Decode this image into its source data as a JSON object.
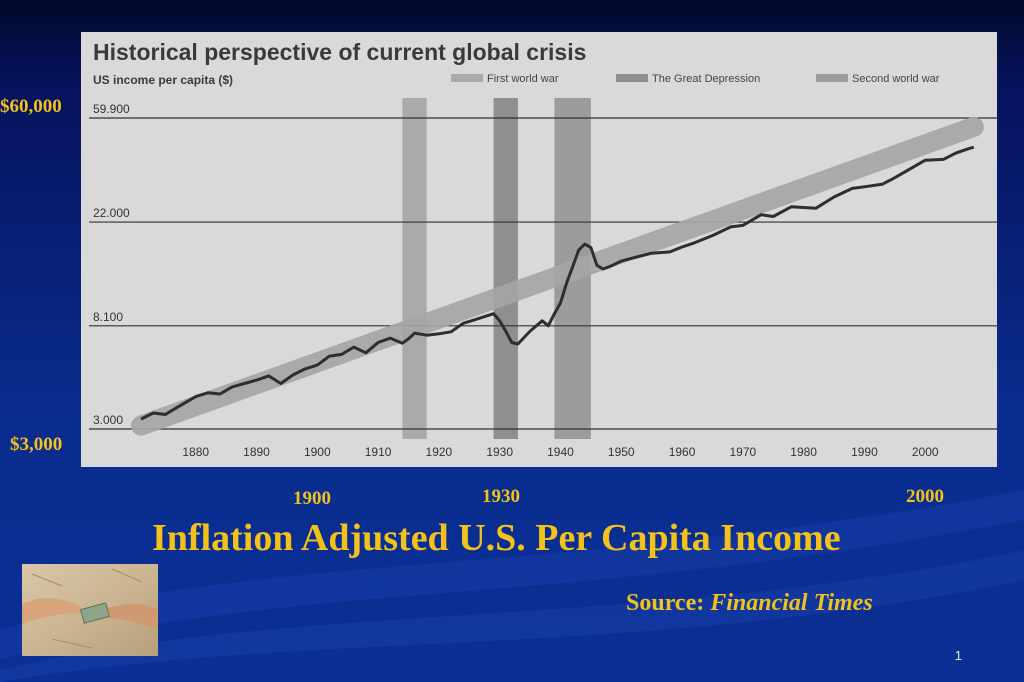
{
  "slide": {
    "title": "Inflation Adjusted U.S. Per Capita Income",
    "source_label": "Source:",
    "source_name": "Financial Times",
    "slide_number": "1",
    "y_label_top": "$60,000",
    "y_label_bottom": "$3,000",
    "year_labels": [
      "1900",
      "1930",
      "2000"
    ],
    "image_description": "hands passing money"
  },
  "chart_data": {
    "type": "line",
    "title": "Historical perspective of current global crisis",
    "ylabel": "US income per capita ($)",
    "scale": "log",
    "ylim": [
      3000,
      59900
    ],
    "yticks": [
      59900,
      22000,
      8100,
      3000
    ],
    "ytick_labels": [
      "59.900",
      "22.000",
      "8.100",
      "3.000"
    ],
    "xlim": [
      1871,
      2010
    ],
    "xticks": [
      1880,
      1890,
      1900,
      1910,
      1920,
      1930,
      1940,
      1950,
      1960,
      1970,
      1980,
      1990,
      2000
    ],
    "legend_position": "top",
    "shaded_periods": [
      {
        "name": "First world war",
        "start": 1914,
        "end": 1918
      },
      {
        "name": "The Great Depression",
        "start": 1929,
        "end": 1933
      },
      {
        "name": "Second world war",
        "start": 1939,
        "end": 1945
      }
    ],
    "trend": {
      "x": [
        1871,
        2008
      ],
      "y": [
        3100,
        55000
      ]
    },
    "series": [
      {
        "x": [
          1871,
          1873,
          1875,
          1877,
          1880,
          1882,
          1884,
          1886,
          1888,
          1890,
          1892,
          1894,
          1896,
          1898,
          1900,
          1902,
          1904,
          1906,
          1908,
          1910,
          1912,
          1914,
          1915,
          1916,
          1918,
          1920,
          1922,
          1924,
          1926,
          1929,
          1930,
          1931,
          1932,
          1933,
          1935,
          1937,
          1938,
          1939,
          1940,
          1941,
          1942,
          1943,
          1944,
          1945,
          1946,
          1947,
          1948,
          1950,
          1952,
          1955,
          1958,
          1960,
          1962,
          1965,
          1968,
          1970,
          1973,
          1975,
          1978,
          1980,
          1982,
          1985,
          1988,
          1990,
          1993,
          1995,
          1998,
          2000,
          2003,
          2005,
          2007,
          2008
        ],
        "y": [
          3300,
          3500,
          3450,
          3700,
          4100,
          4250,
          4200,
          4500,
          4650,
          4800,
          5000,
          4650,
          5050,
          5350,
          5550,
          6050,
          6150,
          6600,
          6250,
          6900,
          7200,
          6850,
          7150,
          7550,
          7400,
          7500,
          7650,
          8300,
          8600,
          9100,
          8500,
          7700,
          6900,
          6800,
          7700,
          8500,
          8100,
          9100,
          10100,
          12200,
          14300,
          16800,
          17800,
          17200,
          14500,
          14000,
          14300,
          15100,
          15600,
          16300,
          16500,
          17300,
          18000,
          19300,
          21000,
          21300,
          23600,
          23200,
          25500,
          25300,
          25100,
          28000,
          30400,
          30900,
          31700,
          33700,
          37300,
          39900,
          40200,
          42700,
          44500,
          45200
        ]
      }
    ]
  }
}
